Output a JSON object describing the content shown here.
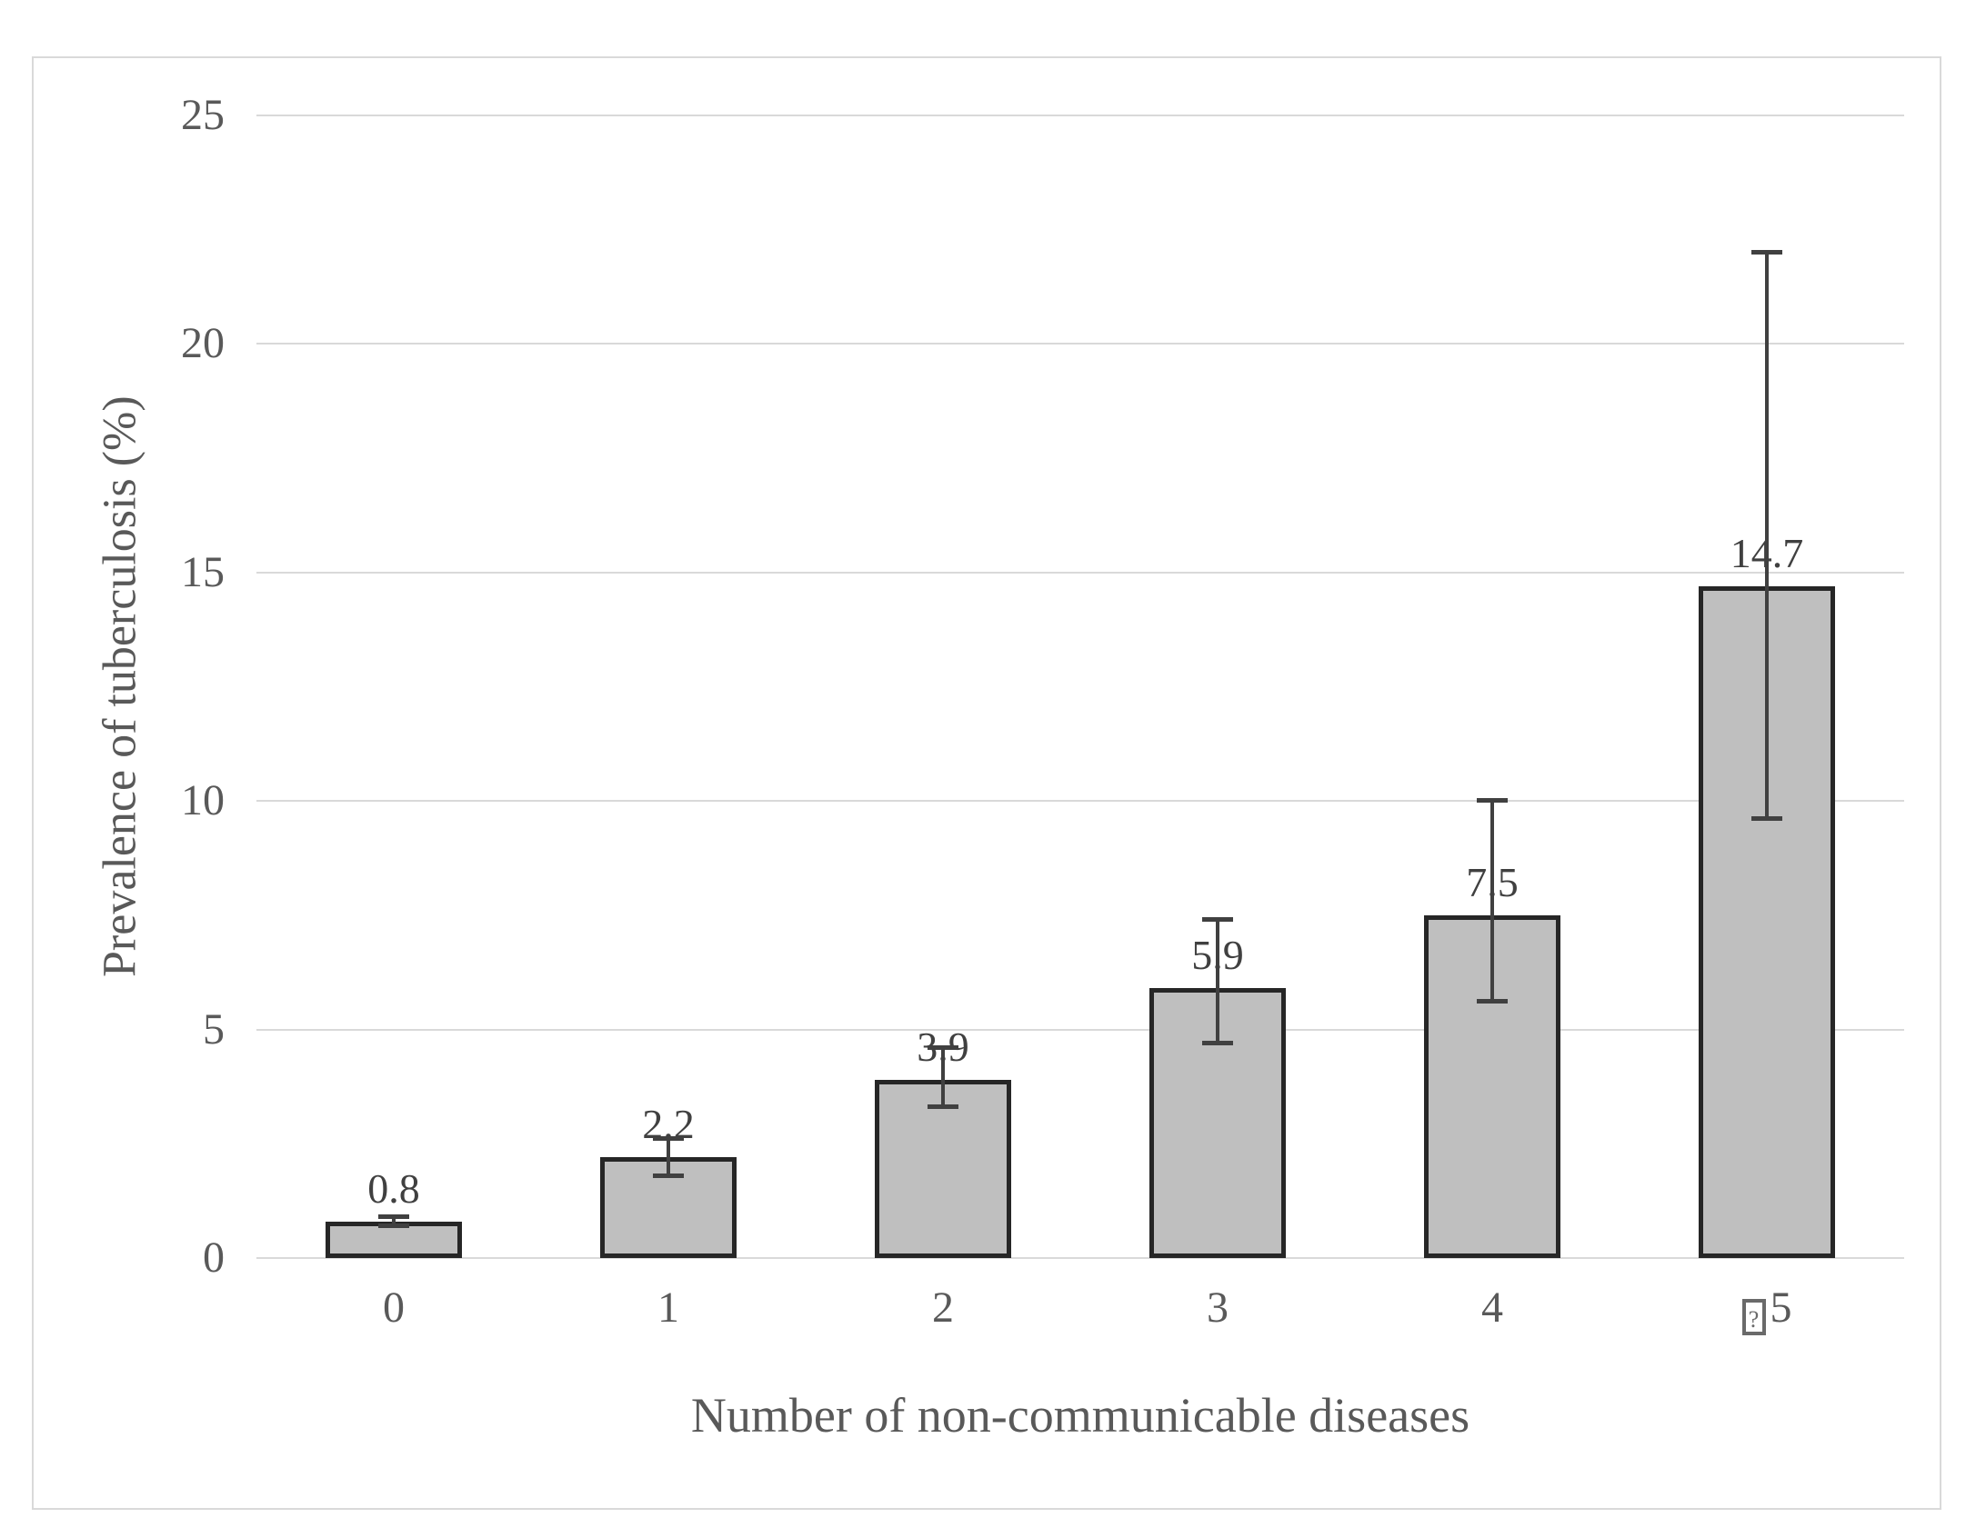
{
  "chart_data": {
    "type": "bar",
    "title": "",
    "xlabel": "Number of non-communicable diseases",
    "ylabel": "Prevalence of tuberculosis (%)",
    "ylim": [
      0,
      25
    ],
    "yticks": [
      0,
      5,
      10,
      15,
      20,
      25
    ],
    "grid": "horizontal-gridlines-only",
    "legend": "none",
    "categories": [
      "0",
      "1",
      "2",
      "3",
      "4",
      "5"
    ],
    "category_prefix_missing_glyph": [
      false,
      false,
      false,
      false,
      false,
      true
    ],
    "missing_glyph_inner": "?",
    "values": [
      0.8,
      2.2,
      3.9,
      5.9,
      7.5,
      14.7
    ],
    "data_labels": [
      "0.8",
      "2.2",
      "3.9",
      "5.9",
      "7.5",
      "14.7"
    ],
    "error_bars": {
      "low": [
        0.7,
        1.8,
        3.3,
        4.7,
        5.6,
        9.6
      ],
      "high": [
        0.9,
        2.6,
        4.6,
        7.4,
        10.0,
        22.0
      ]
    },
    "colors": {
      "bar_fill": "#bfbfbf",
      "bar_border": "#262626",
      "error_bar": "#404040",
      "gridline": "#d9d9d9",
      "axis_text": "#595959",
      "data_label_text": "#404040",
      "frame_border": "#d9d9d9"
    }
  }
}
